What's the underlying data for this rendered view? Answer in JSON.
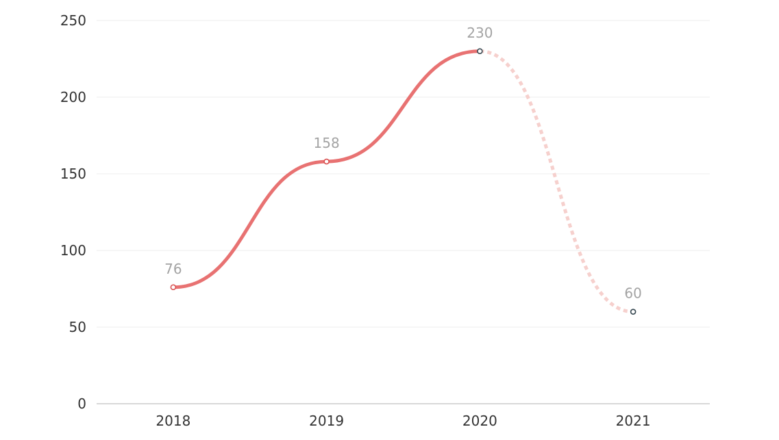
{
  "chart_data": {
    "type": "line",
    "title": "",
    "xlabel": "",
    "ylabel": "",
    "categories": [
      "2018",
      "2019",
      "2020",
      "2021"
    ],
    "values": [
      76,
      158,
      230,
      60
    ],
    "ylim": [
      0,
      250
    ],
    "yticks": [
      0,
      50,
      100,
      150,
      200,
      250
    ],
    "grid": true,
    "legend": "none",
    "smooth": true,
    "solid_through_index": 2,
    "dashed_from_index": 2,
    "colors": {
      "line": "#e87272",
      "line_dashed": "#f6d0cd",
      "marker_solid": "#d95050",
      "marker_projected": "#35464f",
      "grid": "#eeeeee",
      "axis": "#cccccc",
      "tick_text": "#333333",
      "data_label": "#a3a3a3"
    }
  }
}
